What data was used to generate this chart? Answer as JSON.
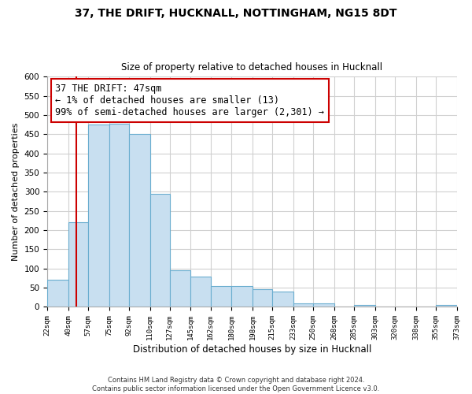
{
  "title1": "37, THE DRIFT, HUCKNALL, NOTTINGHAM, NG15 8DT",
  "title2": "Size of property relative to detached houses in Hucknall",
  "xlabel": "Distribution of detached houses by size in Hucknall",
  "ylabel": "Number of detached properties",
  "bin_edges": [
    22,
    40,
    57,
    75,
    92,
    110,
    127,
    145,
    162,
    180,
    198,
    215,
    233,
    250,
    268,
    285,
    303,
    320,
    338,
    355,
    373
  ],
  "bar_heights": [
    70,
    220,
    475,
    478,
    450,
    295,
    95,
    80,
    55,
    54,
    46,
    40,
    10,
    10,
    0,
    5,
    0,
    0,
    0,
    5
  ],
  "bar_color": "#c8dff0",
  "bar_edge_color": "#6aadcf",
  "property_line_x": 47,
  "property_line_color": "#cc0000",
  "annotation_text": "37 THE DRIFT: 47sqm\n← 1% of detached houses are smaller (13)\n99% of semi-detached houses are larger (2,301) →",
  "annotation_box_color": "#ffffff",
  "annotation_box_edge_color": "#cc0000",
  "ylim": [
    0,
    600
  ],
  "yticks": [
    0,
    50,
    100,
    150,
    200,
    250,
    300,
    350,
    400,
    450,
    500,
    550,
    600
  ],
  "tick_labels": [
    "22sqm",
    "40sqm",
    "57sqm",
    "75sqm",
    "92sqm",
    "110sqm",
    "127sqm",
    "145sqm",
    "162sqm",
    "180sqm",
    "198sqm",
    "215sqm",
    "233sqm",
    "250sqm",
    "268sqm",
    "285sqm",
    "303sqm",
    "320sqm",
    "338sqm",
    "355sqm",
    "373sqm"
  ],
  "footer_text": "Contains HM Land Registry data © Crown copyright and database right 2024.\nContains public sector information licensed under the Open Government Licence v3.0.",
  "background_color": "#ffffff",
  "grid_color": "#d0d0d0"
}
